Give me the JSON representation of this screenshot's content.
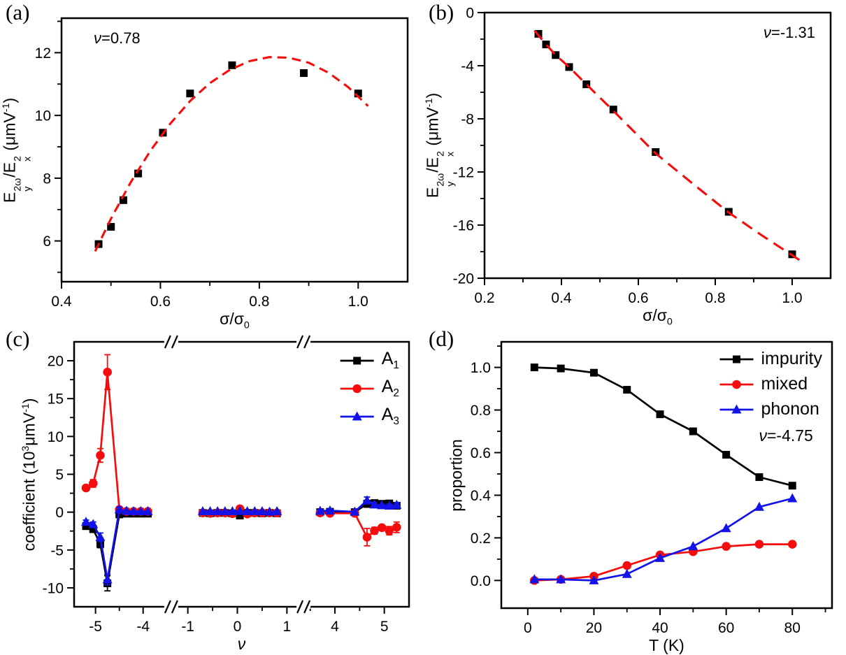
{
  "chart_data": [
    {
      "type": "scatter",
      "panel_label": "(a)",
      "annotation": [
        {
          "i": "ν"
        },
        {
          "t": "=0.78"
        }
      ],
      "annotation_anchor": "top-left",
      "xlabel_tokens": [
        {
          "t": "σ/σ"
        },
        {
          "sub": "0"
        }
      ],
      "ylabel_tokens": [
        {
          "t": "E"
        },
        {
          "st": [
            "2ω",
            "y"
          ]
        },
        {
          "t": "/E"
        },
        {
          "st": [
            "2",
            "x"
          ]
        },
        {
          "t": " (μmV"
        },
        {
          "sup": "-1"
        },
        {
          "t": ")"
        }
      ],
      "xlim": [
        0.4,
        1.1
      ],
      "ylim": [
        4.7,
        13.1
      ],
      "xticks": [
        [
          0.4,
          "0.4"
        ],
        [
          0.6,
          "0.6"
        ],
        [
          0.8,
          "0.8"
        ],
        [
          1.0,
          "1.0"
        ]
      ],
      "xminor": [
        0.5,
        0.7,
        0.9
      ],
      "yticks": [
        [
          6,
          "6"
        ],
        [
          8,
          "8"
        ],
        [
          10,
          "10"
        ],
        [
          12,
          "12"
        ]
      ],
      "yminor": [
        5,
        7,
        9,
        11,
        13
      ],
      "box": {
        "l": 88,
        "t": 26,
        "r": 583,
        "b": 403
      },
      "series": [
        {
          "name": "data",
          "marker": "square",
          "color": "#000000",
          "line": false,
          "x": [
            0.475,
            0.5,
            0.525,
            0.555,
            0.605,
            0.66,
            0.745,
            0.89,
            1.0
          ],
          "y": [
            5.9,
            6.45,
            7.3,
            8.15,
            9.45,
            10.7,
            11.6,
            11.35,
            10.7
          ]
        }
      ],
      "fit": {
        "color": "#f50d0d",
        "dash": "13 8",
        "x": [
          0.468,
          0.5,
          0.54,
          0.58,
          0.62,
          0.66,
          0.7,
          0.74,
          0.78,
          0.82,
          0.86,
          0.9,
          0.94,
          0.98,
          1.02
        ],
        "y": [
          5.67,
          6.71,
          7.87,
          8.88,
          9.74,
          10.46,
          11.03,
          11.45,
          11.73,
          11.86,
          11.84,
          11.68,
          11.36,
          10.9,
          10.3
        ]
      }
    },
    {
      "type": "scatter",
      "panel_label": "(b)",
      "annotation": [
        {
          "i": "ν"
        },
        {
          "t": "=-1.31"
        }
      ],
      "annotation_anchor": "top-right",
      "xlabel_tokens": [
        {
          "t": "σ/σ"
        },
        {
          "sub": "0"
        }
      ],
      "ylabel_tokens": [
        {
          "t": "E"
        },
        {
          "st": [
            "2ω",
            "y"
          ]
        },
        {
          "t": "/E"
        },
        {
          "st": [
            "2",
            "x"
          ]
        },
        {
          "t": " (μmV"
        },
        {
          "sup": "-1"
        },
        {
          "t": ")"
        }
      ],
      "xlim": [
        0.2,
        1.1
      ],
      "ylim": [
        -20,
        0
      ],
      "xticks": [
        [
          0.2,
          "0.2"
        ],
        [
          0.4,
          "0.4"
        ],
        [
          0.6,
          "0.6"
        ],
        [
          0.8,
          "0.8"
        ],
        [
          1.0,
          "1.0"
        ]
      ],
      "xminor": [
        0.3,
        0.5,
        0.7,
        0.9
      ],
      "yticks": [
        [
          0,
          "0"
        ],
        [
          -4,
          "-4"
        ],
        [
          -8,
          "-8"
        ],
        [
          -12,
          "-12"
        ],
        [
          -16,
          "-16"
        ],
        [
          -20,
          "-20"
        ]
      ],
      "yminor": [
        -2,
        -6,
        -10,
        -14,
        -18
      ],
      "box": {
        "l": 88,
        "t": 18,
        "r": 583,
        "b": 398
      },
      "series": [
        {
          "name": "data",
          "marker": "square",
          "color": "#000000",
          "line": false,
          "x": [
            0.34,
            0.36,
            0.385,
            0.42,
            0.465,
            0.535,
            0.645,
            0.835,
            1.0
          ],
          "y": [
            -1.6,
            -2.4,
            -3.2,
            -4.1,
            -5.4,
            -7.3,
            -10.5,
            -15.0,
            -18.2
          ]
        }
      ],
      "fit": {
        "color": "#f50d0d",
        "dash": "17 10",
        "x": [
          0.33,
          0.36,
          0.385,
          0.42,
          0.465,
          0.535,
          0.645,
          0.74,
          0.835,
          0.92,
          1.02
        ],
        "y": [
          -1.35,
          -2.4,
          -3.2,
          -4.1,
          -5.4,
          -7.4,
          -10.6,
          -12.85,
          -15.05,
          -16.75,
          -18.65
        ]
      }
    },
    {
      "type": "scatter",
      "panel_label": "(c)",
      "xlabel_tokens": [
        {
          "i": "ν"
        }
      ],
      "ylabel_tokens": [
        {
          "t": "coefficient (10"
        },
        {
          "sup": "3"
        },
        {
          "t": "μmV"
        },
        {
          "sup": "-1"
        },
        {
          "t": ")"
        }
      ],
      "ylim": [
        -12.5,
        22.5
      ],
      "yticks": [
        [
          -10,
          "-10"
        ],
        [
          -5,
          "-5"
        ],
        [
          0,
          "0"
        ],
        [
          5,
          "5"
        ],
        [
          10,
          "10"
        ],
        [
          15,
          "15"
        ],
        [
          20,
          "20"
        ]
      ],
      "yminor": [
        -7.5,
        -2.5,
        2.5,
        7.5,
        12.5,
        17.5
      ],
      "x_segments": [
        {
          "range": [
            -5.45,
            -3.55
          ],
          "f": [
            0.0,
            0.27
          ],
          "ticks": [
            [
              -5,
              "-5"
            ],
            [
              -4,
              "-4"
            ]
          ],
          "minor": [
            -4.5
          ]
        },
        {
          "range": [
            -1.2,
            1.2
          ],
          "f": [
            0.31,
            0.665
          ],
          "ticks": [
            [
              -1,
              "-1"
            ],
            [
              0,
              "0"
            ],
            [
              1,
              "1"
            ]
          ],
          "minor": [
            -0.5,
            0.5
          ]
        },
        {
          "range": [
            3.5,
            5.5
          ],
          "f": [
            0.705,
            1.0
          ],
          "ticks": [
            [
              4,
              "4"
            ],
            [
              5,
              "5"
            ]
          ],
          "minor": [
            3.5,
            4.5
          ]
        }
      ],
      "box": {
        "l": 106,
        "t": 22,
        "r": 585,
        "b": 401
      },
      "legend": true,
      "series": [
        {
          "name": "A1",
          "label_tokens": [
            {
              "t": "A"
            },
            {
              "sub": "1"
            }
          ],
          "marker": "square",
          "color": "#000000",
          "x": [
            -5.2,
            -5.05,
            -4.9,
            -4.75,
            -4.5,
            -4.35,
            -4.2,
            -4.05,
            -3.9,
            -0.7,
            -0.55,
            -0.4,
            -0.25,
            -0.1,
            0.05,
            0.2,
            0.35,
            0.5,
            0.65,
            0.8,
            3.7,
            3.9,
            4.4,
            4.65,
            4.8,
            4.95,
            5.1,
            5.25
          ],
          "y": [
            -1.85,
            -2.25,
            -4.2,
            -9.4,
            -0.3,
            -0.2,
            -0.2,
            -0.2,
            -0.2,
            -0.1,
            -0.15,
            -0.1,
            -0.1,
            -0.15,
            -0.45,
            -0.1,
            -0.1,
            -0.15,
            -0.1,
            -0.15,
            0.0,
            0.05,
            0.0,
            1.1,
            1.2,
            1.1,
            1.15,
            0.85
          ],
          "err": [
            0.3,
            0.3,
            0.5,
            1.0,
            0.2,
            0,
            0,
            0,
            0,
            0,
            0,
            0,
            0,
            0,
            0.15,
            0,
            0,
            0,
            0,
            0,
            0,
            0,
            0,
            0.45,
            0.3,
            0,
            0.2,
            0.25
          ]
        },
        {
          "name": "A2",
          "label_tokens": [
            {
              "t": "A"
            },
            {
              "sub": "2"
            }
          ],
          "marker": "circle",
          "color": "#f50d0d",
          "x": [
            -5.2,
            -5.05,
            -4.9,
            -4.75,
            -4.5,
            -4.35,
            -4.2,
            -4.05,
            -3.9,
            -0.7,
            -0.55,
            -0.4,
            -0.25,
            -0.1,
            0.05,
            0.2,
            0.35,
            0.5,
            0.65,
            0.8,
            3.7,
            3.9,
            4.4,
            4.65,
            4.8,
            4.95,
            5.1,
            5.25
          ],
          "y": [
            3.2,
            3.8,
            7.5,
            18.5,
            0.35,
            0.1,
            0.1,
            0.1,
            0.1,
            -0.1,
            -0.15,
            -0.1,
            -0.1,
            -0.2,
            0.45,
            -0.25,
            -0.1,
            -0.1,
            -0.1,
            -0.1,
            -0.1,
            -0.15,
            -0.15,
            -3.3,
            -2.45,
            -2.05,
            -2.45,
            -2.0
          ],
          "err": [
            0.3,
            0.5,
            0.9,
            2.3,
            0.2,
            0,
            0,
            0,
            0,
            0,
            0,
            0,
            0,
            0,
            0.2,
            0,
            0,
            0,
            0,
            0,
            0.15,
            0.15,
            0.15,
            1.15,
            0.45,
            0.3,
            0.55,
            0.7
          ]
        },
        {
          "name": "A3",
          "label_tokens": [
            {
              "t": "A"
            },
            {
              "sub": "3"
            }
          ],
          "marker": "triangle",
          "color": "#1313e8",
          "x": [
            -5.2,
            -5.05,
            -4.9,
            -4.75,
            -4.5,
            -4.35,
            -4.2,
            -4.05,
            -3.9,
            -0.7,
            -0.55,
            -0.4,
            -0.25,
            -0.1,
            0.05,
            0.2,
            0.35,
            0.5,
            0.65,
            0.8,
            3.7,
            3.9,
            4.4,
            4.65,
            4.8,
            4.95,
            5.1,
            5.25
          ],
          "y": [
            -1.3,
            -1.6,
            -3.3,
            -8.9,
            0.35,
            0.15,
            0.1,
            0.1,
            0.1,
            0.1,
            0.1,
            0.1,
            0.1,
            0.1,
            0.15,
            0.1,
            0.1,
            0.1,
            0.05,
            0.1,
            0.15,
            0.2,
            0.05,
            1.55,
            1.0,
            0.9,
            0.85,
            0.95
          ],
          "err": [
            0.25,
            0.3,
            0.55,
            0.7,
            0.3,
            0,
            0,
            0,
            0,
            0,
            0,
            0,
            0,
            0,
            0,
            0,
            0,
            0,
            0,
            0,
            0.2,
            0.2,
            0,
            0.45,
            0.25,
            0,
            0.2,
            0.3
          ]
        }
      ]
    },
    {
      "type": "line",
      "panel_label": "(d)",
      "xlabel_tokens": [
        {
          "t": "T (K)"
        }
      ],
      "ylabel_tokens": [
        {
          "t": "proportion"
        }
      ],
      "xlim": [
        -8,
        92
      ],
      "ylim": [
        -0.13,
        1.12
      ],
      "xticks": [
        [
          0,
          "0"
        ],
        [
          20,
          "20"
        ],
        [
          40,
          "40"
        ],
        [
          60,
          "60"
        ],
        [
          80,
          "80"
        ]
      ],
      "xminor": [
        10,
        30,
        50,
        70,
        90
      ],
      "yticks": [
        [
          0,
          "0.0"
        ],
        [
          0.2,
          "0.2"
        ],
        [
          0.4,
          "0.4"
        ],
        [
          0.6,
          "0.6"
        ],
        [
          0.8,
          "0.8"
        ],
        [
          1.0,
          "1.0"
        ]
      ],
      "yminor": [
        0.1,
        0.3,
        0.5,
        0.7,
        0.9,
        1.1
      ],
      "box": {
        "l": 112,
        "t": 22,
        "r": 585,
        "b": 403
      },
      "legend": true,
      "legend_footer": [
        {
          "i": "ν"
        },
        {
          "t": "=-4.75"
        }
      ],
      "series": [
        {
          "name": "impurity",
          "label_tokens": [
            {
              "t": "impurity"
            }
          ],
          "marker": "square",
          "color": "#000000",
          "x": [
            2,
            10,
            20,
            30,
            40,
            50,
            60,
            70,
            80
          ],
          "y": [
            1.0,
            0.995,
            0.975,
            0.895,
            0.78,
            0.7,
            0.59,
            0.485,
            0.445
          ]
        },
        {
          "name": "mixed",
          "label_tokens": [
            {
              "t": "mixed"
            }
          ],
          "marker": "circle",
          "color": "#f50d0d",
          "x": [
            2,
            10,
            20,
            30,
            40,
            50,
            60,
            70,
            80
          ],
          "y": [
            0.0,
            0.005,
            0.02,
            0.07,
            0.12,
            0.135,
            0.16,
            0.17,
            0.17
          ]
        },
        {
          "name": "phonon",
          "label_tokens": [
            {
              "t": "phonon"
            }
          ],
          "marker": "triangle",
          "color": "#1313e8",
          "x": [
            2,
            10,
            20,
            30,
            40,
            50,
            60,
            70,
            80
          ],
          "y": [
            0.005,
            0.005,
            0.0,
            0.03,
            0.105,
            0.16,
            0.245,
            0.345,
            0.385
          ]
        }
      ]
    }
  ]
}
